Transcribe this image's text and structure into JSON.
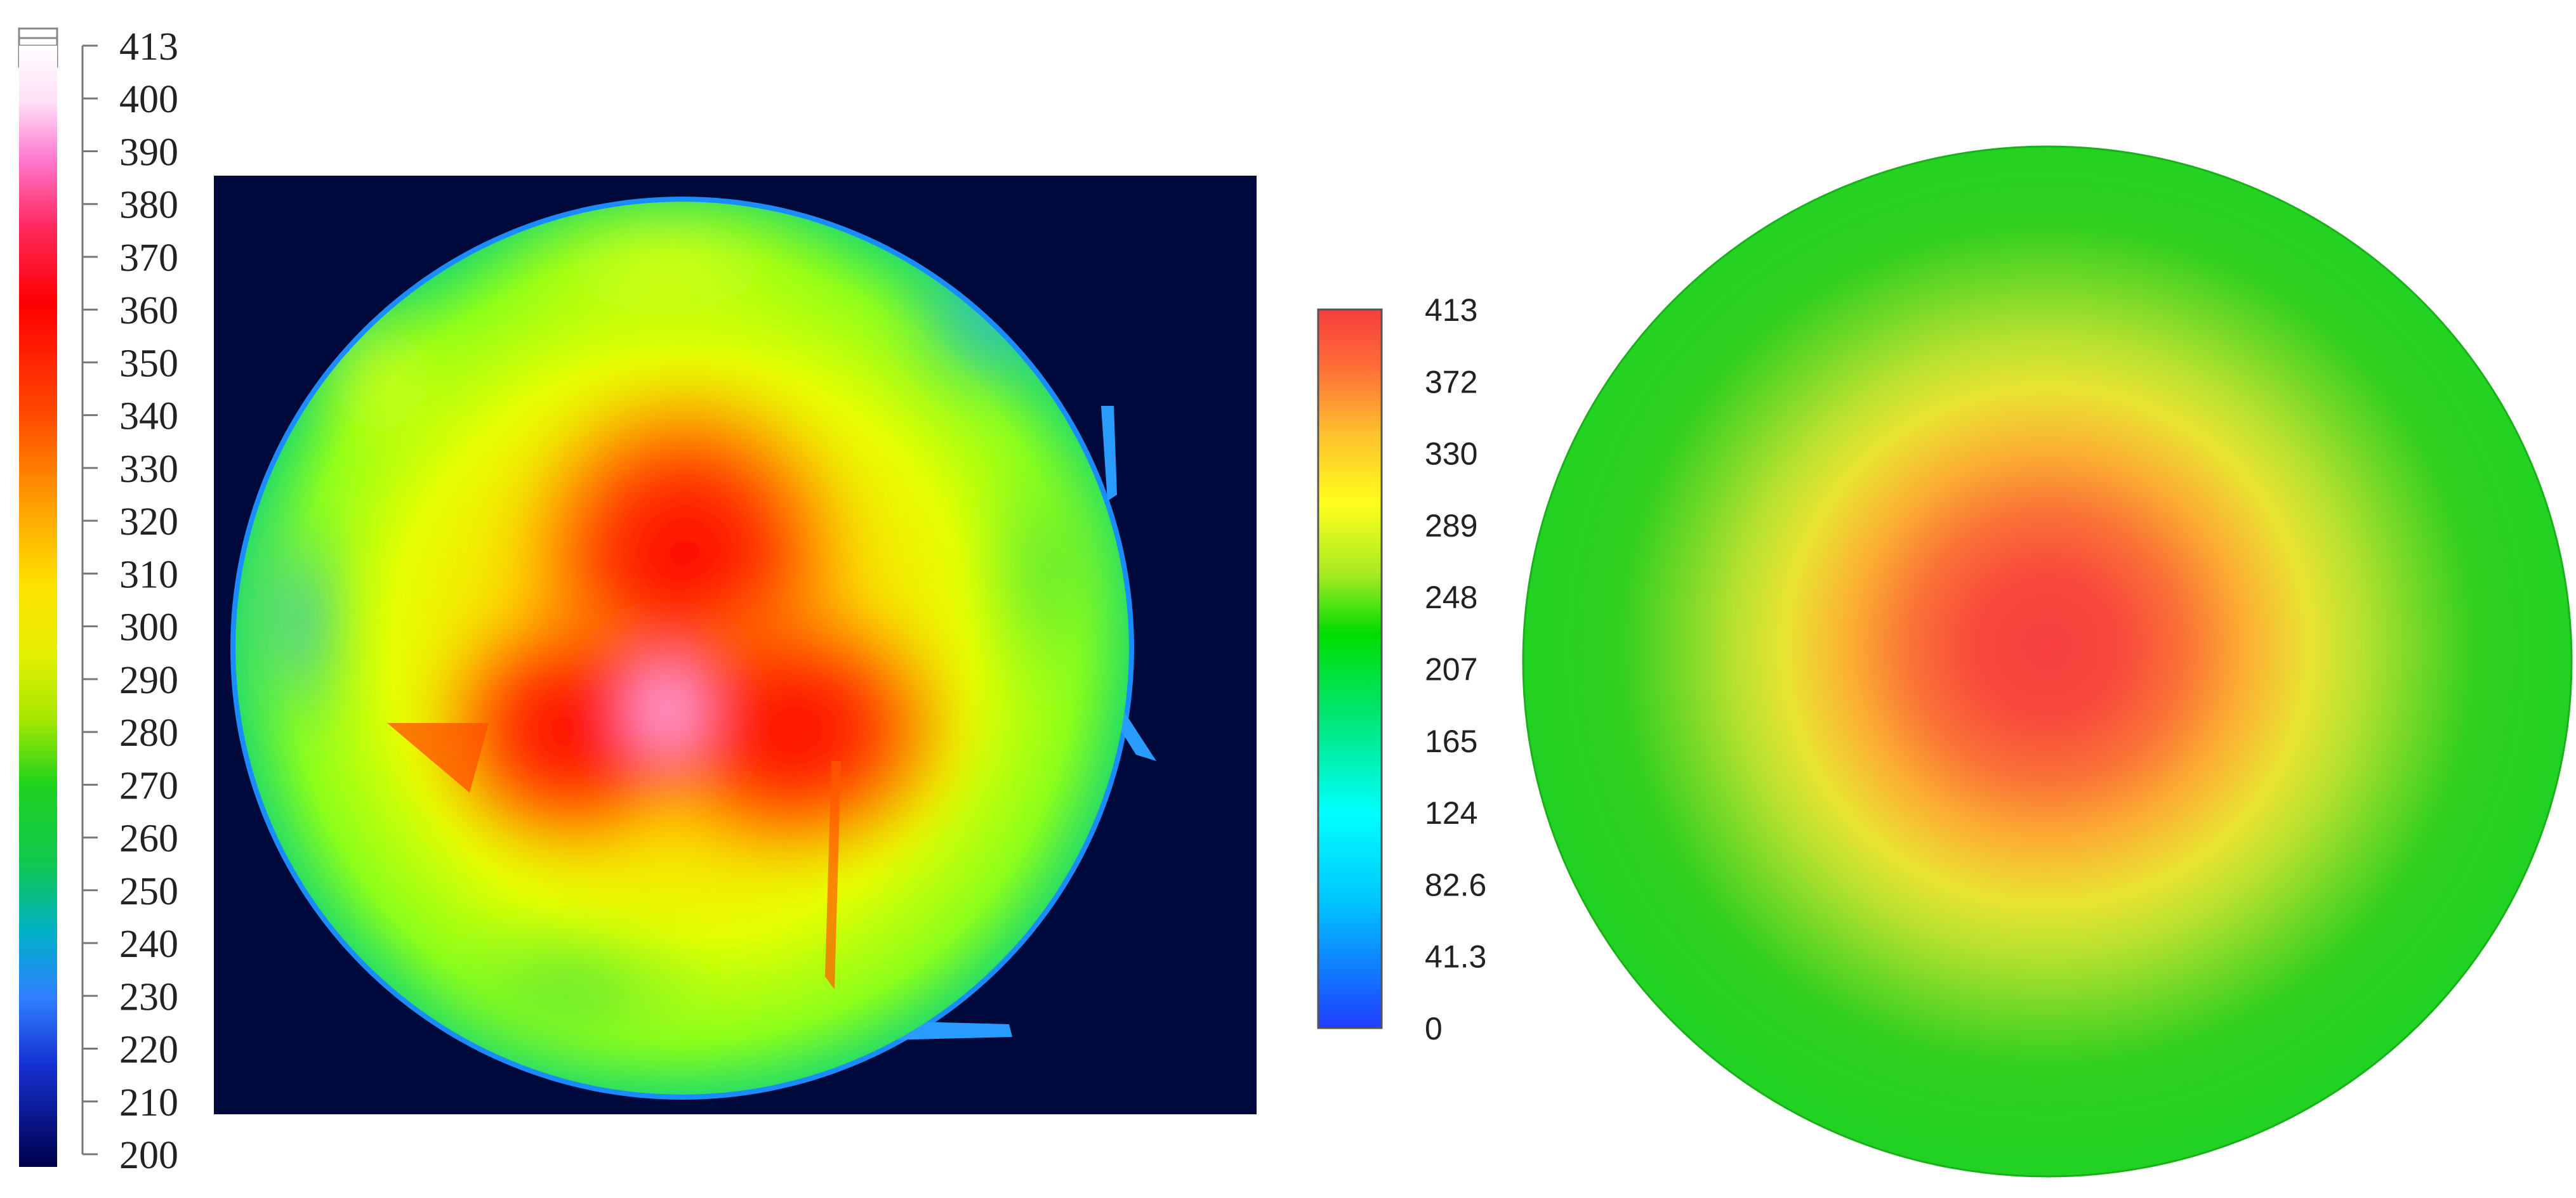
{
  "chart_data": [
    {
      "type": "heatmap",
      "title": "",
      "xlabel": "",
      "ylabel": "",
      "colorbar": {
        "position": "left",
        "ticks": [
          "413",
          "400",
          "390",
          "380",
          "370",
          "360",
          "350",
          "340",
          "330",
          "320",
          "310",
          "300",
          "290",
          "280",
          "270",
          "260",
          "250",
          "240",
          "230",
          "220",
          "210",
          "200"
        ],
        "range": [
          200,
          413
        ],
        "colormap": [
          "#00004a",
          "#0000c8",
          "#2f7fff",
          "#00d7d0",
          "#1ed21e",
          "#c8ee00",
          "#ffff00",
          "#ffb400",
          "#ff5000",
          "#ff0000",
          "#ff3c96",
          "#ffb4f0",
          "#ffffff"
        ]
      },
      "image": {
        "description_values": {
          "background": "#000a3c",
          "disk_edge_color": "#1a8cff",
          "peak_value": 395,
          "edge_value": 245
        }
      }
    },
    {
      "type": "heatmap",
      "title": "",
      "xlabel": "",
      "ylabel": "",
      "colorbar": {
        "position": "middle",
        "ticks": [
          "413",
          "372",
          "330",
          "289",
          "248",
          "207",
          "165",
          "124",
          "82.6",
          "41.3",
          "0"
        ],
        "range": [
          0,
          413
        ],
        "colormap": [
          "#1f3dff",
          "#00c8ff",
          "#00ffff",
          "#00e64b",
          "#00dd00",
          "#9bea22",
          "#ffff1c",
          "#ffbe2d",
          "#ff6e37",
          "#f63e3e"
        ]
      },
      "image": {
        "description_values": {
          "center_value": 413,
          "edge_value": 220,
          "disk_fill": "#22d222"
        }
      }
    }
  ]
}
